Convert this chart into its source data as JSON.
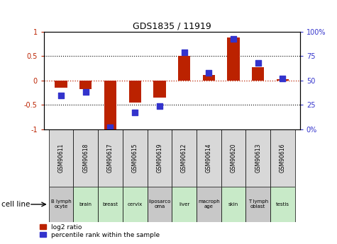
{
  "title": "GDS1835 / 11919",
  "gsm_labels": [
    "GSM90611",
    "GSM90618",
    "GSM90617",
    "GSM90615",
    "GSM90619",
    "GSM90612",
    "GSM90614",
    "GSM90620",
    "GSM90613",
    "GSM90616"
  ],
  "cell_labels": [
    "B lymph\nocyte",
    "brain",
    "breast",
    "cervix",
    "liposarco\noma",
    "liver",
    "macroph\nage",
    "skin",
    "T lymph\noblast",
    "testis"
  ],
  "cell_bg_colors": [
    "#c8c8c8",
    "#c8eac8",
    "#c8eac8",
    "#c8eac8",
    "#c8c8c8",
    "#c8eac8",
    "#c8c8c8",
    "#c8eac8",
    "#c8c8c8",
    "#c8eac8"
  ],
  "gsm_bg_color": "#d8d8d8",
  "log2_ratio": [
    -0.15,
    -0.18,
    -1.02,
    -0.45,
    -0.35,
    0.5,
    0.12,
    0.88,
    0.28,
    0.02
  ],
  "percentile_rank": [
    35,
    38,
    2,
    17,
    24,
    79,
    58,
    93,
    68,
    52
  ],
  "ylim_left": [
    -1,
    1
  ],
  "ylim_right": [
    0,
    100
  ],
  "yticks_left": [
    -1,
    -0.5,
    0,
    0.5,
    1
  ],
  "yticks_right": [
    0,
    25,
    50,
    75,
    100
  ],
  "ytick_labels_left": [
    "-1",
    "-0.5",
    "0",
    "0.5",
    "1"
  ],
  "ytick_labels_right": [
    "0%",
    "25",
    "50",
    "75",
    "100%"
  ],
  "red_color": "#bb2200",
  "blue_color": "#3333cc",
  "legend_red": "log2 ratio",
  "legend_blue": "percentile rank within the sample",
  "cell_line_label": "cell line"
}
